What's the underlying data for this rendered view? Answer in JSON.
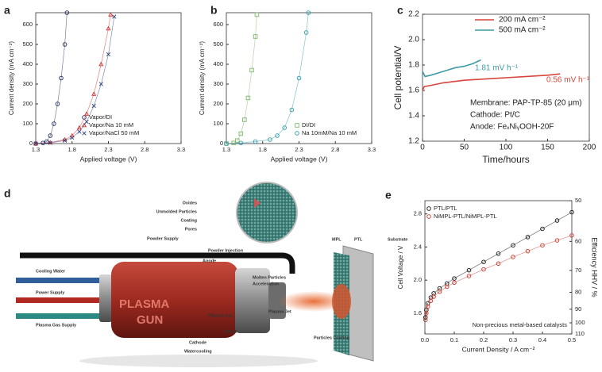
{
  "chart_data": [
    {
      "type": "scatter",
      "panel": "a",
      "x_label": "Applied voltage (V)",
      "y_label": "Current density (mA cm⁻²)",
      "xlim": [
        1.3,
        3.3
      ],
      "xticks": [
        1.3,
        1.8,
        2.3,
        2.8,
        3.3
      ],
      "ylim": [
        0,
        660
      ],
      "yticks": [
        0,
        100,
        200,
        300,
        400,
        500,
        600
      ],
      "legend": "lower right",
      "series": [
        {
          "name": "Vapor/DI",
          "color": "#1f2a5a",
          "marker": "circle",
          "x": [
            1.3,
            1.4,
            1.45,
            1.5,
            1.55,
            1.6,
            1.65,
            1.7,
            1.73
          ],
          "values": [
            0,
            3,
            10,
            40,
            100,
            200,
            330,
            500,
            660
          ]
        },
        {
          "name": "Vapor/Na 10 mM",
          "color": "#d62f2f",
          "marker": "triangle",
          "x": [
            1.3,
            1.5,
            1.7,
            1.8,
            1.9,
            2.0,
            2.1,
            2.2,
            2.3,
            2.33
          ],
          "values": [
            0,
            5,
            20,
            40,
            80,
            150,
            250,
            400,
            580,
            650
          ]
        },
        {
          "name": "Vapor/NaCl 50 mM",
          "color": "#2b3f7a",
          "marker": "cross",
          "x": [
            1.3,
            1.5,
            1.7,
            1.8,
            1.9,
            2.0,
            2.1,
            2.2,
            2.3,
            2.38
          ],
          "values": [
            0,
            4,
            15,
            30,
            60,
            110,
            190,
            300,
            450,
            640
          ]
        }
      ]
    },
    {
      "type": "scatter",
      "panel": "b",
      "x_label": "Applied voltage (V)",
      "y_label": "Current density (mA cm⁻²)",
      "xlim": [
        1.3,
        3.3
      ],
      "xticks": [
        1.3,
        1.8,
        2.3,
        2.8,
        3.3
      ],
      "ylim": [
        0,
        660
      ],
      "yticks": [
        0,
        100,
        200,
        300,
        400,
        500,
        600
      ],
      "legend": "lower right",
      "series": [
        {
          "name": "DI/DI",
          "color": "#7fb86a",
          "marker": "square",
          "x": [
            1.3,
            1.4,
            1.45,
            1.5,
            1.55,
            1.6,
            1.65,
            1.7,
            1.72
          ],
          "values": [
            0,
            3,
            15,
            50,
            120,
            230,
            370,
            540,
            650
          ]
        },
        {
          "name": "Na 10mM/Na 10 mM",
          "color": "#2f9aa8",
          "marker": "circle",
          "x": [
            1.3,
            1.5,
            1.7,
            1.9,
            2.0,
            2.1,
            2.2,
            2.3,
            2.4,
            2.43
          ],
          "values": [
            0,
            3,
            10,
            20,
            40,
            80,
            170,
            330,
            560,
            660
          ]
        }
      ]
    },
    {
      "type": "line",
      "panel": "c",
      "x_label": "Time/hours",
      "y_label": "Cell potential/V",
      "xlim": [
        0,
        200
      ],
      "xticks": [
        0,
        50,
        100,
        150,
        200
      ],
      "ylim": [
        1.2,
        2.2
      ],
      "yticks": [
        1.2,
        1.4,
        1.6,
        1.8,
        {
          "value": 2.0,
          "label": "2.0"
        },
        2.2
      ],
      "legend": "upper right",
      "series": [
        {
          "name": "200 mA cm⁻²",
          "color": "#d9453b",
          "x": [
            0,
            2,
            10,
            25,
            50,
            75,
            100,
            125,
            150,
            165
          ],
          "values": [
            1.6,
            1.63,
            1.64,
            1.66,
            1.68,
            1.69,
            1.7,
            1.71,
            1.72,
            1.73
          ]
        },
        {
          "name": "500 mA cm⁻²",
          "color": "#3c9aa5",
          "x": [
            0,
            3,
            10,
            20,
            30,
            40,
            50,
            60,
            70
          ],
          "values": [
            1.75,
            1.71,
            1.72,
            1.74,
            1.76,
            1.78,
            1.79,
            1.81,
            1.84
          ]
        }
      ],
      "annotations": [
        {
          "text": "1.81 mV h⁻¹",
          "color": "#3c9aa5"
        },
        {
          "text": "0.56 mV h⁻¹",
          "color": "#d9453b"
        },
        {
          "text": "Membrane: PAP-TP-85 (20 μm)",
          "color": "#222222"
        },
        {
          "text": "Cathode: Pt/C",
          "color": "#222222"
        },
        {
          "text": "Anode: FeₓNiᵧOOH-20F",
          "color": "#222222"
        }
      ]
    },
    {
      "type": "scatter",
      "panel": "e",
      "x_label": "Current Density / A cm⁻²",
      "y_label": "Cell Voltage / V",
      "y2_label": "Efficiency HHV / %",
      "xlim": [
        0,
        0.5
      ],
      "xticks": [
        {
          "value": 0,
          "label": "0.0"
        },
        0.1,
        0.2,
        0.3,
        0.4,
        0.5
      ],
      "ylim": [
        1.35,
        2.96
      ],
      "yticks": [
        1.6,
        {
          "value": 2.0,
          "label": "2.0"
        },
        2.4,
        2.8
      ],
      "y2lim": [
        110,
        50
      ],
      "y2scale": "reciprocal",
      "y2ticks": [
        50,
        60,
        70,
        80,
        90,
        100,
        110
      ],
      "legend": "upper left",
      "series": [
        {
          "name": "PTL/PTL",
          "color": "#111111",
          "marker": "circle",
          "x": [
            0.002,
            0.005,
            0.01,
            0.02,
            0.03,
            0.05,
            0.075,
            0.1,
            0.15,
            0.2,
            0.25,
            0.3,
            0.35,
            0.4,
            0.45,
            0.5
          ],
          "values": [
            1.55,
            1.64,
            1.72,
            1.79,
            1.84,
            1.9,
            1.96,
            2.02,
            2.12,
            2.22,
            2.32,
            2.42,
            2.52,
            2.62,
            2.72,
            2.82
          ]
        },
        {
          "name": "NiMPL-PTL/NiMPL-PTL",
          "color": "#c9372c",
          "marker": "circle",
          "x": [
            0.002,
            0.005,
            0.01,
            0.02,
            0.03,
            0.05,
            0.075,
            0.1,
            0.15,
            0.2,
            0.25,
            0.3,
            0.35,
            0.4,
            0.45,
            0.5
          ],
          "values": [
            1.52,
            1.6,
            1.68,
            1.75,
            1.8,
            1.86,
            1.92,
            1.97,
            2.05,
            2.13,
            2.2,
            2.28,
            2.35,
            2.42,
            2.48,
            2.54
          ]
        }
      ],
      "annotations": [
        {
          "text": "Non-precious metal-based catalysts",
          "color": "#222222"
        }
      ]
    }
  ],
  "diagram": {
    "panel": "d",
    "labels": [
      "Oxides",
      "Unmolded Particles",
      "Coating",
      "Pores",
      "Powder Supply",
      "Powder Injection",
      "Anode",
      "Cooling Water",
      "Power Supply",
      "Plasma Gas Supply",
      "PLASMA",
      "GUN",
      "Molten Particles",
      "Acceleration",
      "Plasma Jet",
      "Plasma Gas",
      "Anode",
      "Cathode",
      "Watercooling",
      "Particles Coating",
      "MPL",
      "PTL",
      "Substrate"
    ]
  }
}
